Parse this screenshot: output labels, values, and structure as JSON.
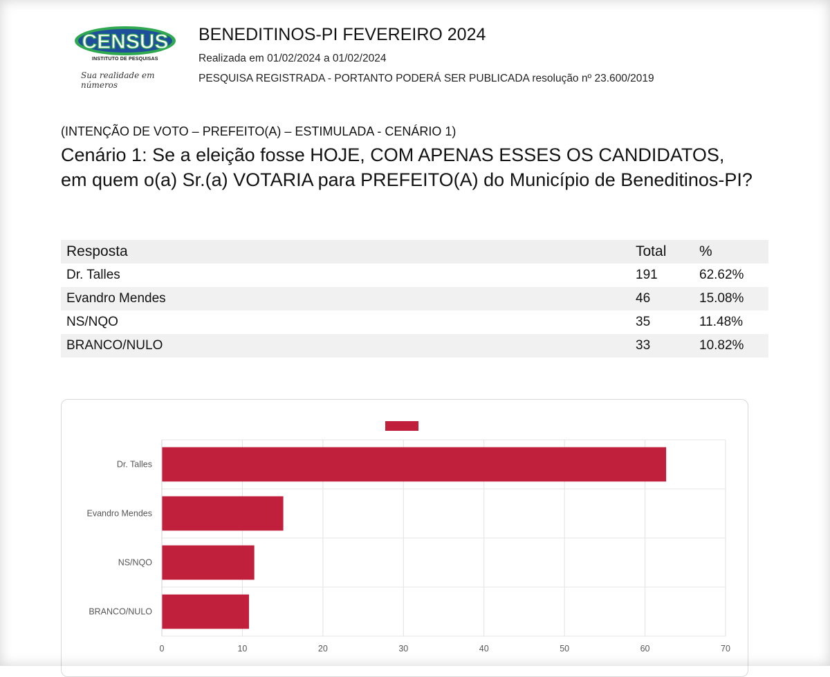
{
  "header": {
    "logo_name": "CENSUS",
    "logo_subtitle": "INSTITUTO DE PESQUISAS",
    "logo_slogan": "Sua realidade em números",
    "title": "BENEDITINOS-PI FEVEREIRO 2024",
    "date_line": "Realizada em 01/02/2024 a 01/02/2024",
    "registration_line": "PESQUISA REGISTRADA - PORTANTO PODERÁ SER PUBLICADA resolução nº 23.600/2019"
  },
  "question": {
    "code": "(INTENÇÃO DE VOTO – PREFEITO(A) – ESTIMULADA - CENÁRIO 1)",
    "text": "Cenário 1: Se a eleição fosse HOJE, COM APENAS ESSES OS CANDIDATOS, em quem o(a) Sr.(a) VOTARIA para PREFEITO(A) do Município de Beneditinos-PI?"
  },
  "table": {
    "headers": [
      "Resposta",
      "Total",
      "%"
    ],
    "rows": [
      {
        "resposta": "Dr. Talles",
        "total": "191",
        "pct": "62.62%"
      },
      {
        "resposta": "Evandro Mendes",
        "total": "46",
        "pct": "15.08%"
      },
      {
        "resposta": "NS/NQO",
        "total": "35",
        "pct": "11.48%"
      },
      {
        "resposta": "BRANCO/NULO",
        "total": "33",
        "pct": "10.82%"
      }
    ]
  },
  "colors": {
    "bar": "#c0203c",
    "logo_blue": "#1f4f9c",
    "logo_green": "#2fa84f"
  },
  "chart_data": {
    "type": "bar",
    "orientation": "horizontal",
    "categories": [
      "Dr. Talles",
      "Evandro Mendes",
      "NS/NQO",
      "BRANCO/NULO"
    ],
    "values": [
      62.62,
      15.08,
      11.48,
      10.82
    ],
    "title": "",
    "xlabel": "",
    "ylabel": "",
    "xlim": [
      0,
      70
    ],
    "xticks": [
      0,
      10,
      20,
      30,
      40,
      50,
      60,
      70
    ],
    "legend": "top-center",
    "legend_label": "",
    "grid": true
  }
}
